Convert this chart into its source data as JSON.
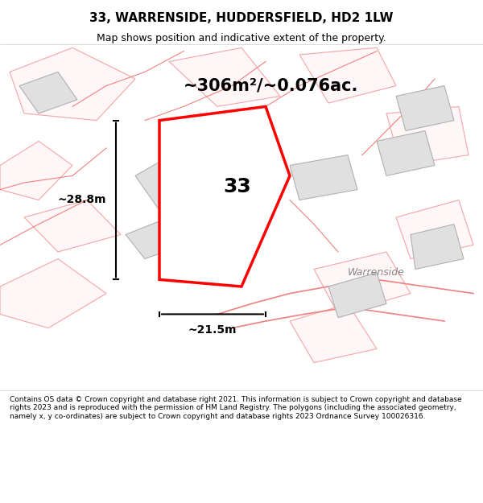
{
  "title": "33, WARRENSIDE, HUDDERSFIELD, HD2 1LW",
  "subtitle": "Map shows position and indicative extent of the property.",
  "area_label": "~306m²/~0.076ac.",
  "number_label": "33",
  "dim_width": "~21.5m",
  "dim_height": "~28.8m",
  "street_label": "Warrenside",
  "footer": "Contains OS data © Crown copyright and database right 2021. This information is subject to Crown copyright and database rights 2023 and is reproduced with the permission of HM Land Registry. The polygons (including the associated geometry, namely x, y co-ordinates) are subject to Crown copyright and database rights 2023 Ordnance Survey 100026316.",
  "bg_color": "#f8f8f8",
  "map_bg": "#ffffff",
  "plot_color": "#ff0000",
  "plot_fill": "#ffffff",
  "plot_alpha": 1.0,
  "other_plot_color": "#f08080",
  "other_plot_fill": "#f0f0f0",
  "building_fill": "#e0e0e0",
  "building_edge": "#b0b0b0"
}
